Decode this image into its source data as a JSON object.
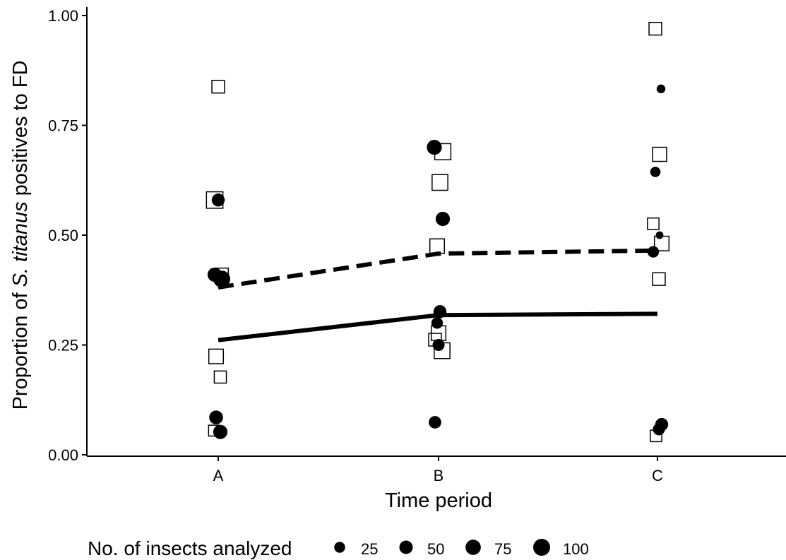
{
  "chart_data": {
    "type": "scatter",
    "title": "",
    "xlabel": "Time period",
    "ylabel": {
      "prefix": "Proportion of ",
      "italic": "S. titanus",
      "suffix": " positives to FD"
    },
    "categories": [
      "A",
      "B",
      "C"
    ],
    "ylim": [
      0,
      1
    ],
    "y_ticks": [
      "0.00",
      "0.25",
      "0.50",
      "0.75",
      "1.00"
    ],
    "grid": false,
    "legend": {
      "title": "No. of insects analyzed",
      "position": "bottom",
      "entries": [
        {
          "label": "25",
          "value": 25
        },
        {
          "label": "50",
          "value": 50
        },
        {
          "label": "75",
          "value": 75
        },
        {
          "label": "100",
          "value": 100
        }
      ]
    },
    "series": [
      {
        "marker": "circle-filled",
        "points": [
          {
            "x": "A",
            "y": 0.58,
            "n": 45
          },
          {
            "x": "A",
            "y": 0.41,
            "n": 60
          },
          {
            "x": "A",
            "y": 0.4,
            "n": 100
          },
          {
            "x": "A",
            "y": 0.085,
            "n": 55
          },
          {
            "x": "A",
            "y": 0.052,
            "n": 60
          },
          {
            "x": "B",
            "y": 0.7,
            "n": 70
          },
          {
            "x": "B",
            "y": 0.537,
            "n": 60
          },
          {
            "x": "B",
            "y": 0.326,
            "n": 45
          },
          {
            "x": "B",
            "y": 0.3,
            "n": 30
          },
          {
            "x": "B",
            "y": 0.25,
            "n": 35
          },
          {
            "x": "B",
            "y": 0.074,
            "n": 40
          },
          {
            "x": "C",
            "y": 0.833,
            "n": 10
          },
          {
            "x": "C",
            "y": 0.644,
            "n": 20
          },
          {
            "x": "C",
            "y": 0.5,
            "n": 5
          },
          {
            "x": "C",
            "y": 0.462,
            "n": 30
          },
          {
            "x": "C",
            "y": 0.069,
            "n": 45
          },
          {
            "x": "C",
            "y": 0.058,
            "n": 35
          }
        ]
      },
      {
        "marker": "square-open",
        "points": [
          {
            "x": "A",
            "y": 0.838,
            "n": 35
          },
          {
            "x": "A",
            "y": 0.58,
            "n": 80
          },
          {
            "x": "A",
            "y": 0.41,
            "n": 40
          },
          {
            "x": "A",
            "y": 0.224,
            "n": 55
          },
          {
            "x": "A",
            "y": 0.177,
            "n": 30
          },
          {
            "x": "A",
            "y": 0.055,
            "n": 20
          },
          {
            "x": "B",
            "y": 0.69,
            "n": 75
          },
          {
            "x": "B",
            "y": 0.62,
            "n": 70
          },
          {
            "x": "B",
            "y": 0.475,
            "n": 55
          },
          {
            "x": "B",
            "y": 0.277,
            "n": 55
          },
          {
            "x": "B",
            "y": 0.262,
            "n": 35
          },
          {
            "x": "B",
            "y": 0.237,
            "n": 70
          },
          {
            "x": "C",
            "y": 0.97,
            "n": 35
          },
          {
            "x": "C",
            "y": 0.684,
            "n": 50
          },
          {
            "x": "C",
            "y": 0.526,
            "n": 25
          },
          {
            "x": "C",
            "y": 0.481,
            "n": 55
          },
          {
            "x": "C",
            "y": 0.4,
            "n": 35
          },
          {
            "x": "C",
            "y": 0.043,
            "n": 25
          }
        ]
      }
    ],
    "fitted_lines": [
      {
        "style": "solid",
        "x": [
          "A",
          "B",
          "C"
        ],
        "y": [
          0.261,
          0.318,
          0.321
        ]
      },
      {
        "style": "dashed",
        "x": [
          "A",
          "B",
          "C"
        ],
        "y": [
          0.381,
          0.458,
          0.465
        ]
      }
    ]
  }
}
